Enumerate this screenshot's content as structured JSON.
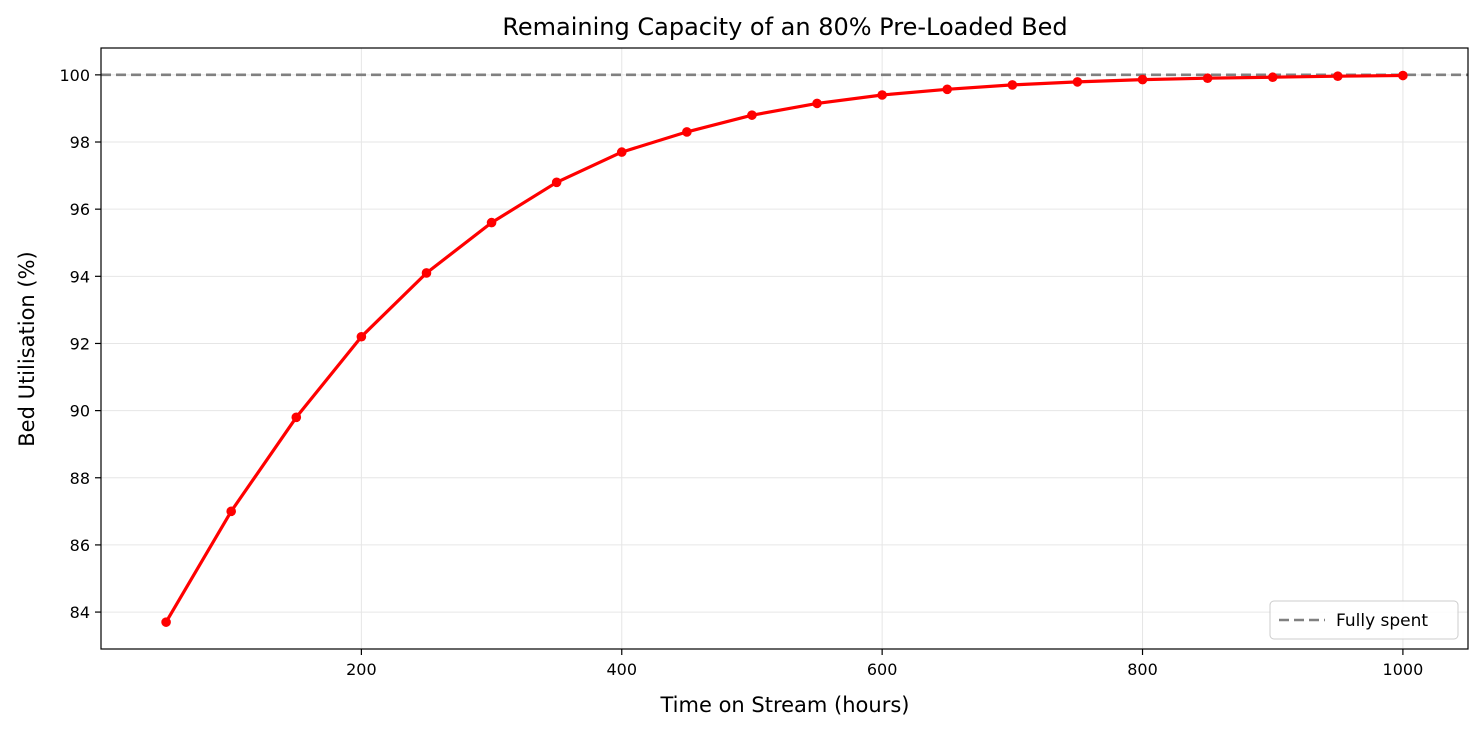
{
  "chart_data": {
    "type": "line",
    "title": "Remaining Capacity of an 80% Pre-Loaded Bed",
    "xlabel": "Time on Stream (hours)",
    "ylabel": "Bed Utilisation (%)",
    "xlim": [
      0,
      1050
    ],
    "ylim": [
      82.9,
      100.8
    ],
    "x_ticks": [
      200,
      400,
      600,
      800,
      1000
    ],
    "y_ticks": [
      84,
      86,
      88,
      90,
      92,
      94,
      96,
      98,
      100
    ],
    "grid": true,
    "legend_position": "bottom-right",
    "series": [
      {
        "color": "#ff0000",
        "marker": "circle",
        "x": [
          50,
          100,
          150,
          200,
          250,
          300,
          350,
          400,
          450,
          500,
          550,
          600,
          650,
          700,
          750,
          800,
          850,
          900,
          950,
          1000
        ],
        "y": [
          83.7,
          87.0,
          89.8,
          92.2,
          94.1,
          95.6,
          96.8,
          97.7,
          98.3,
          98.8,
          99.15,
          99.4,
          99.57,
          99.7,
          99.79,
          99.86,
          99.9,
          99.93,
          99.96,
          99.98
        ]
      }
    ],
    "reference_lines": [
      {
        "name": "Fully spent",
        "y": 100,
        "style": "dashed",
        "color": "#808080"
      }
    ]
  }
}
